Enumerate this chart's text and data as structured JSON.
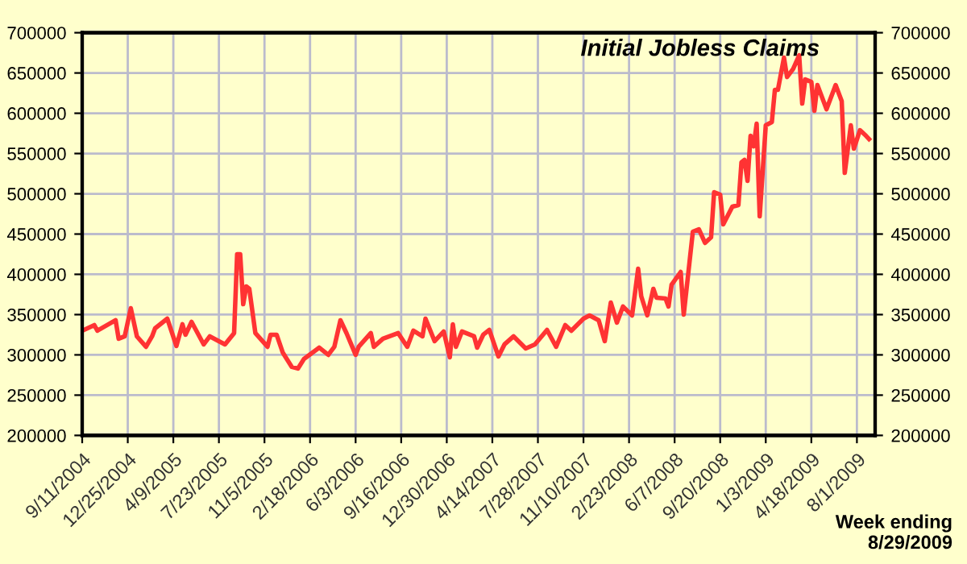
{
  "chart_data": {
    "type": "line",
    "title": "Initial Jobless Claims",
    "annotations": [
      "Week ending\n8/29/2009"
    ],
    "x": [
      "2004-09-11",
      "2004-10-09",
      "2004-10-16",
      "2004-11-27",
      "2004-12-04",
      "2004-12-18",
      "2005-01-01",
      "2005-01-15",
      "2005-02-05",
      "2005-02-19",
      "2005-02-26",
      "2005-03-26",
      "2005-04-16",
      "2005-04-30",
      "2005-05-07",
      "2005-05-21",
      "2005-06-18",
      "2005-07-02",
      "2005-08-06",
      "2005-08-27",
      "2005-09-03",
      "2005-09-10",
      "2005-09-17",
      "2005-09-24",
      "2005-10-01",
      "2005-10-15",
      "2005-11-12",
      "2005-11-19",
      "2005-12-03",
      "2005-12-17",
      "2006-01-07",
      "2006-01-21",
      "2006-02-04",
      "2006-03-11",
      "2006-04-01",
      "2006-04-15",
      "2006-04-29",
      "2006-05-13",
      "2006-06-03",
      "2006-06-10",
      "2006-07-08",
      "2006-07-15",
      "2006-08-05",
      "2006-09-09",
      "2006-09-30",
      "2006-10-14",
      "2006-11-04",
      "2006-11-11",
      "2006-12-02",
      "2006-12-23",
      "2007-01-06",
      "2007-01-13",
      "2007-01-20",
      "2007-02-03",
      "2007-03-03",
      "2007-03-10",
      "2007-03-24",
      "2007-04-07",
      "2007-04-28",
      "2007-05-12",
      "2007-06-02",
      "2007-06-30",
      "2007-07-21",
      "2007-08-18",
      "2007-09-08",
      "2007-09-29",
      "2007-10-13",
      "2007-11-10",
      "2007-11-24",
      "2007-12-15",
      "2007-12-29",
      "2008-01-12",
      "2008-01-26",
      "2008-02-09",
      "2008-03-01",
      "2008-03-15",
      "2008-03-22",
      "2008-04-05",
      "2008-04-19",
      "2008-04-26",
      "2008-05-17",
      "2008-05-24",
      "2008-05-31",
      "2008-06-21",
      "2008-06-28",
      "2008-07-19",
      "2008-08-02",
      "2008-08-16",
      "2008-08-30",
      "2008-09-06",
      "2008-09-20",
      "2008-09-27",
      "2008-10-18",
      "2008-11-01",
      "2008-11-08",
      "2008-11-15",
      "2008-11-22",
      "2008-11-29",
      "2008-12-06",
      "2008-12-13",
      "2008-12-20",
      "2009-01-03",
      "2009-01-17",
      "2009-01-24",
      "2009-01-31",
      "2009-02-14",
      "2009-02-21",
      "2009-03-07",
      "2009-03-21",
      "2009-03-28",
      "2009-04-04",
      "2009-04-18",
      "2009-04-25",
      "2009-05-02",
      "2009-05-09",
      "2009-05-23",
      "2009-06-13",
      "2009-06-27",
      "2009-07-04",
      "2009-07-18",
      "2009-07-25",
      "2009-08-08",
      "2009-08-22",
      "2009-08-29"
    ],
    "series": [
      {
        "color": "#ff3333",
        "values": [
          330000,
          337000,
          330000,
          343000,
          320000,
          323000,
          358000,
          323000,
          310000,
          323000,
          333000,
          345000,
          311000,
          338000,
          325000,
          341000,
          313000,
          323000,
          313000,
          327000,
          425000,
          425000,
          363000,
          385000,
          382000,
          327000,
          310000,
          325000,
          325000,
          303000,
          285000,
          283000,
          295000,
          309000,
          300000,
          310000,
          343000,
          327000,
          300000,
          310000,
          327000,
          310000,
          320000,
          327000,
          310000,
          330000,
          323000,
          345000,
          317000,
          329000,
          297000,
          338000,
          310000,
          329000,
          323000,
          309000,
          325000,
          331000,
          298000,
          313000,
          323000,
          308000,
          313000,
          331000,
          310000,
          337000,
          330000,
          345000,
          349000,
          343000,
          317000,
          365000,
          340000,
          360000,
          349000,
          407000,
          373000,
          349000,
          382000,
          371000,
          370000,
          360000,
          387000,
          403000,
          350000,
          453000,
          456000,
          439000,
          446000,
          502000,
          499000,
          462000,
          484000,
          486000,
          539000,
          542000,
          516000,
          572000,
          559000,
          587000,
          472000,
          585000,
          589000,
          629000,
          629000,
          669000,
          645000,
          655000,
          672000,
          612000,
          642000,
          639000,
          603000,
          635000,
          625000,
          605000,
          635000,
          615000,
          526000,
          585000,
          556000,
          579000,
          572000,
          568000
        ]
      }
    ],
    "xlim": [
      "2004-09-11",
      "2009-09-12"
    ],
    "xticks": [
      {
        "value": "2004-09-11",
        "label": "9/11/2004"
      },
      {
        "value": "2004-12-25",
        "label": "12/25/2004"
      },
      {
        "value": "2005-04-09",
        "label": "4/9/2005"
      },
      {
        "value": "2005-07-23",
        "label": "7/23/2005"
      },
      {
        "value": "2005-11-05",
        "label": "11/5/2005"
      },
      {
        "value": "2006-02-18",
        "label": "2/18/2006"
      },
      {
        "value": "2006-06-03",
        "label": "6/3/2006"
      },
      {
        "value": "2006-09-16",
        "label": "9/16/2006"
      },
      {
        "value": "2006-12-30",
        "label": "12/30/2006"
      },
      {
        "value": "2007-04-14",
        "label": "4/14/2007"
      },
      {
        "value": "2007-07-28",
        "label": "7/28/2007"
      },
      {
        "value": "2007-11-10",
        "label": "11/10/2007"
      },
      {
        "value": "2008-02-23",
        "label": "2/23/2008"
      },
      {
        "value": "2008-06-07",
        "label": "6/7/2008"
      },
      {
        "value": "2008-09-20",
        "label": "9/20/2008"
      },
      {
        "value": "2009-01-03",
        "label": "1/3/2009"
      },
      {
        "value": "2009-04-18",
        "label": "4/18/2009"
      },
      {
        "value": "2009-08-01",
        "label": "8/1/2009"
      }
    ],
    "ylim": [
      200000,
      700000
    ],
    "yticks": [
      200000,
      250000,
      300000,
      350000,
      400000,
      450000,
      500000,
      550000,
      600000,
      650000,
      700000
    ],
    "y2lim": [
      200000,
      700000
    ],
    "y2ticks": [
      200000,
      250000,
      300000,
      350000,
      400000,
      450000,
      500000,
      550000,
      600000,
      650000,
      700000
    ],
    "grid": true,
    "legend": false,
    "marker": "none",
    "line_style": "solid"
  }
}
